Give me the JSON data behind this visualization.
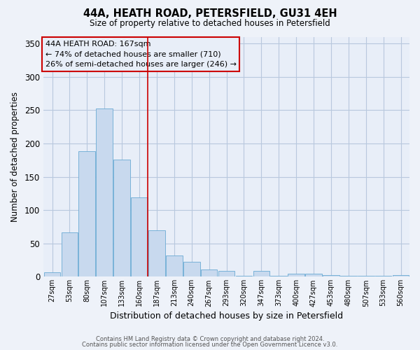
{
  "title_line1": "44A, HEATH ROAD, PETERSFIELD, GU31 4EH",
  "title_line2": "Size of property relative to detached houses in Petersfield",
  "xlabel": "Distribution of detached houses by size in Petersfield",
  "ylabel": "Number of detached properties",
  "bar_labels": [
    "27sqm",
    "53sqm",
    "80sqm",
    "107sqm",
    "133sqm",
    "160sqm",
    "187sqm",
    "213sqm",
    "240sqm",
    "267sqm",
    "293sqm",
    "320sqm",
    "347sqm",
    "373sqm",
    "400sqm",
    "427sqm",
    "453sqm",
    "480sqm",
    "507sqm",
    "533sqm",
    "560sqm"
  ],
  "bar_values": [
    7,
    67,
    188,
    252,
    176,
    119,
    70,
    32,
    22,
    11,
    9,
    1,
    9,
    1,
    5,
    5,
    3,
    1,
    1,
    1,
    2
  ],
  "bar_color": "#c8d9ee",
  "bar_edge_color": "#6aaad4",
  "vline_x": 5.5,
  "vline_color": "#cc0000",
  "ylim": [
    0,
    360
  ],
  "yticks": [
    0,
    50,
    100,
    150,
    200,
    250,
    300,
    350
  ],
  "annotation_title": "44A HEATH ROAD: 167sqm",
  "annotation_line1": "← 74% of detached houses are smaller (710)",
  "annotation_line2": "26% of semi-detached houses are larger (246) →",
  "annotation_box_color": "#cc0000",
  "footer_line1": "Contains HM Land Registry data © Crown copyright and database right 2024.",
  "footer_line2": "Contains public sector information licensed under the Open Government Licence v3.0.",
  "background_color": "#eef2f9",
  "grid_color": "#d0d8e8",
  "ax_background": "#e8eef8"
}
